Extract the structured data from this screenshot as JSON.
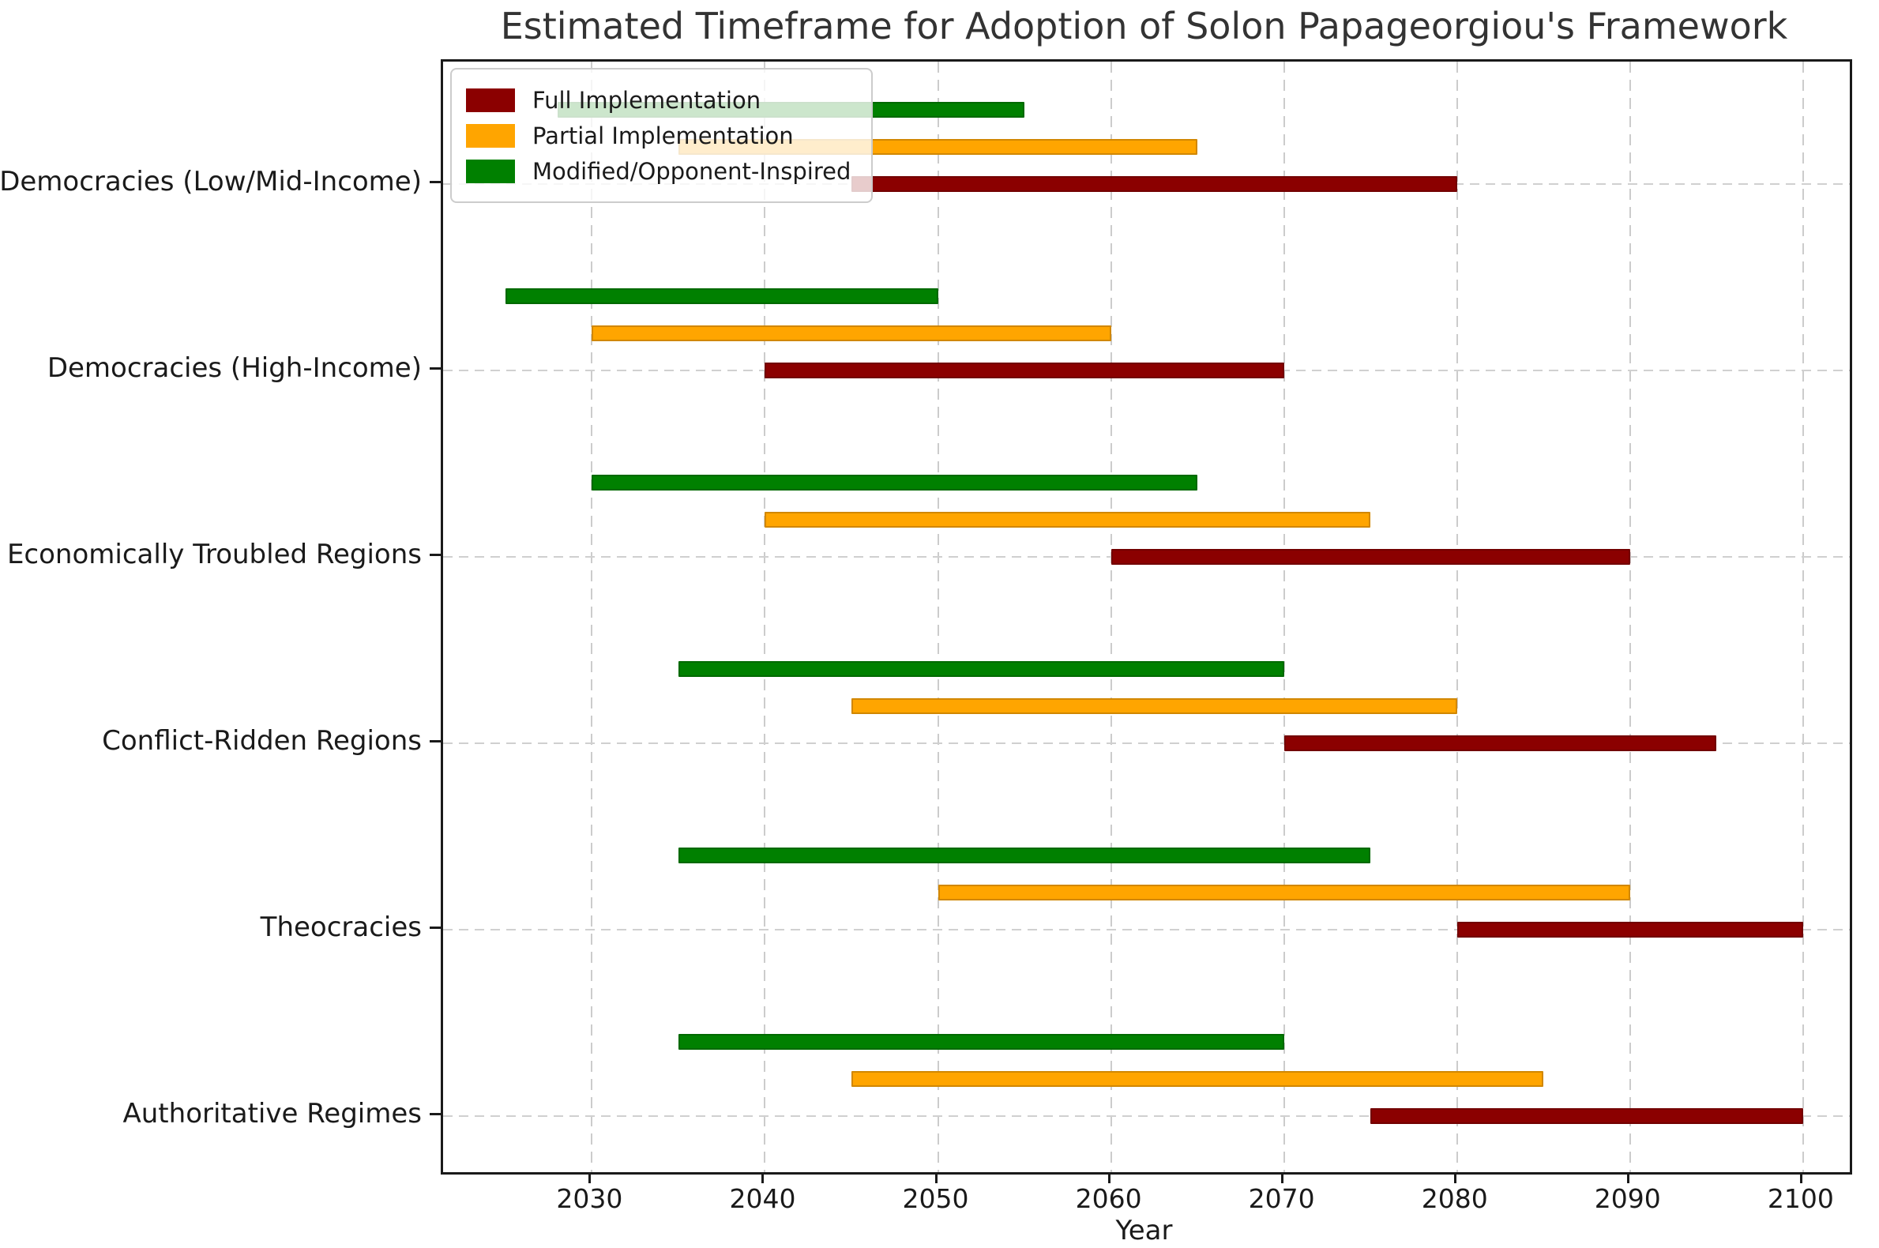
{
  "chart_data": {
    "type": "bar",
    "variant": "horizontal-gantt-timeline",
    "title": "Estimated Timeframe for Adoption of Solon Papageorgiou's Framework",
    "xlabel": "Year",
    "ylabel": "",
    "grid": true,
    "legend_position": "upper left",
    "xlim": [
      2021.4,
      2102.7
    ],
    "xticks": [
      2030,
      2040,
      2050,
      2060,
      2070,
      2080,
      2090,
      2100
    ],
    "categories_top_to_bottom": [
      "Democracies (Low/Mid-Income)",
      "Democracies (High-Income)",
      "Economically Troubled Regions",
      "Conflict-Ridden Regions",
      "Theocracies",
      "Authoritative Regimes"
    ],
    "series": [
      {
        "name": "Full Implementation",
        "color": "#8B0000",
        "ranges": [
          [
            2045,
            2080
          ],
          [
            2040,
            2070
          ],
          [
            2060,
            2090
          ],
          [
            2070,
            2095
          ],
          [
            2080,
            2100
          ],
          [
            2075,
            2100
          ]
        ]
      },
      {
        "name": "Partial Implementation",
        "color": "#FFA500",
        "ranges": [
          [
            2035,
            2065
          ],
          [
            2030,
            2060
          ],
          [
            2040,
            2075
          ],
          [
            2045,
            2080
          ],
          [
            2050,
            2090
          ],
          [
            2045,
            2085
          ]
        ]
      },
      {
        "name": "Modified/Opponent-Inspired",
        "color": "#008000",
        "ranges": [
          [
            2028,
            2055
          ],
          [
            2025,
            2050
          ],
          [
            2030,
            2065
          ],
          [
            2035,
            2070
          ],
          [
            2035,
            2075
          ],
          [
            2035,
            2070
          ]
        ]
      }
    ]
  },
  "colors": {
    "full_implementation": "#8B0000",
    "partial_implementation": "#FFA500",
    "modified_opponent_inspired": "#008000",
    "grid": "#cccccc",
    "spine": "#1a1a1a",
    "title_text": "#333333"
  }
}
